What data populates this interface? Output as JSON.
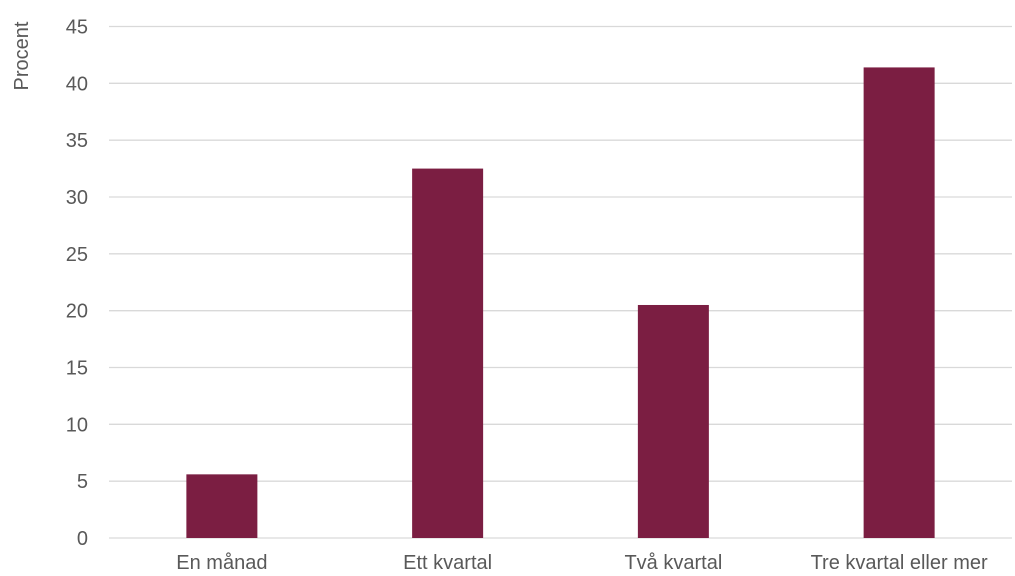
{
  "chart_data": {
    "type": "bar",
    "categories": [
      "En månad",
      "Ett kvartal",
      "Två kvartal",
      "Tre kvartal eller mer"
    ],
    "values": [
      5.6,
      32.5,
      20.5,
      41.4
    ],
    "title": "",
    "xlabel": "",
    "ylabel": "Procent",
    "ylim": [
      0,
      45
    ],
    "yticks": [
      0,
      5,
      10,
      15,
      20,
      25,
      30,
      35,
      40,
      45
    ],
    "grid": true,
    "legend": "none",
    "bar_color": "#7b1e42",
    "grid_color": "#d9d9d9",
    "text_color": "#595959"
  }
}
